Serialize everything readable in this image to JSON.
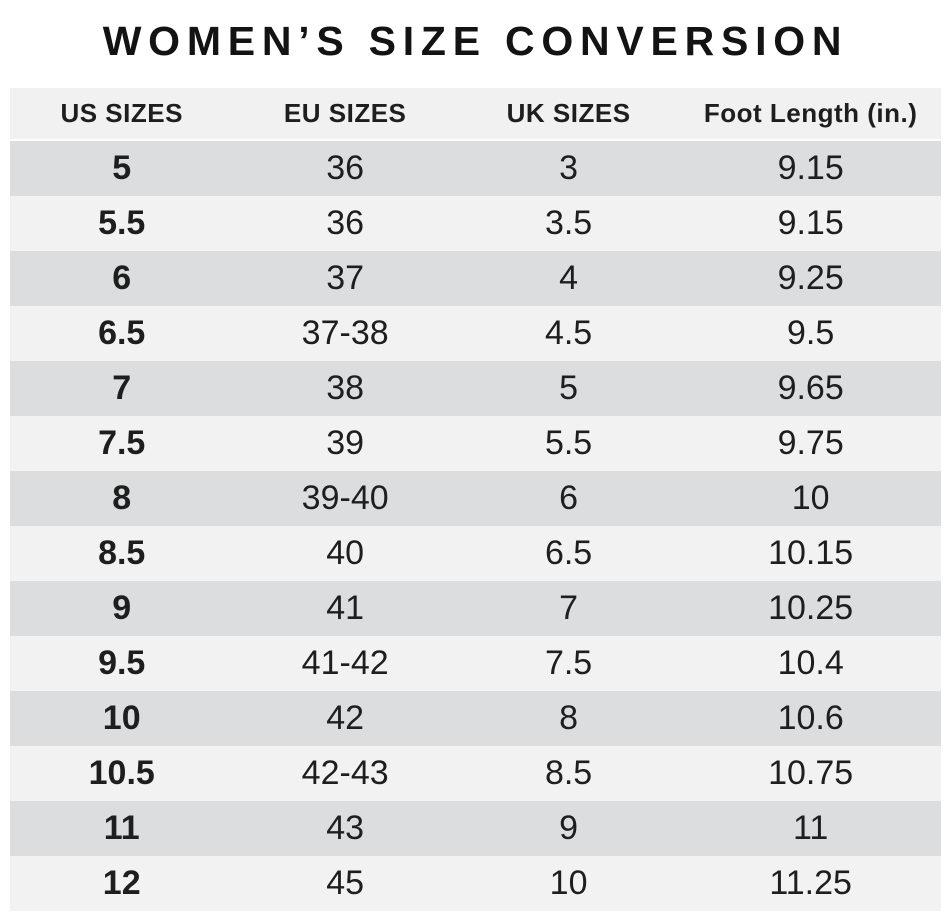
{
  "chart_data": {
    "type": "table",
    "title": "WOMEN’S SIZE CONVERSION",
    "columns": [
      "US SIZES",
      "EU SIZES",
      "UK SIZES",
      "Foot Length (in.)"
    ],
    "column_keys": [
      "us",
      "eu",
      "uk",
      "foot_length_in"
    ],
    "rows": [
      {
        "us": "5",
        "eu": "36",
        "uk": "3",
        "foot_length_in": "9.15"
      },
      {
        "us": "5.5",
        "eu": "36",
        "uk": "3.5",
        "foot_length_in": "9.15"
      },
      {
        "us": "6",
        "eu": "37",
        "uk": "4",
        "foot_length_in": "9.25"
      },
      {
        "us": "6.5",
        "eu": "37-38",
        "uk": "4.5",
        "foot_length_in": "9.5"
      },
      {
        "us": "7",
        "eu": "38",
        "uk": "5",
        "foot_length_in": "9.65"
      },
      {
        "us": "7.5",
        "eu": "39",
        "uk": "5.5",
        "foot_length_in": "9.75"
      },
      {
        "us": "8",
        "eu": "39-40",
        "uk": "6",
        "foot_length_in": "10"
      },
      {
        "us": "8.5",
        "eu": "40",
        "uk": "6.5",
        "foot_length_in": "10.15"
      },
      {
        "us": "9",
        "eu": "41",
        "uk": "7",
        "foot_length_in": "10.25"
      },
      {
        "us": "9.5",
        "eu": "41-42",
        "uk": "7.5",
        "foot_length_in": "10.4"
      },
      {
        "us": "10",
        "eu": "42",
        "uk": "8",
        "foot_length_in": "10.6"
      },
      {
        "us": "10.5",
        "eu": "42-43",
        "uk": "8.5",
        "foot_length_in": "10.75"
      },
      {
        "us": "11",
        "eu": "43",
        "uk": "9",
        "foot_length_in": "11"
      },
      {
        "us": "12",
        "eu": "45",
        "uk": "10",
        "foot_length_in": "11.25"
      }
    ]
  },
  "colors": {
    "background": "#ffffff",
    "title_text": "#131313",
    "text": "#1e1e1e",
    "header_bg": "#f1f1f2",
    "row_dark": "#dcddde",
    "row_light": "#f2f2f3"
  }
}
